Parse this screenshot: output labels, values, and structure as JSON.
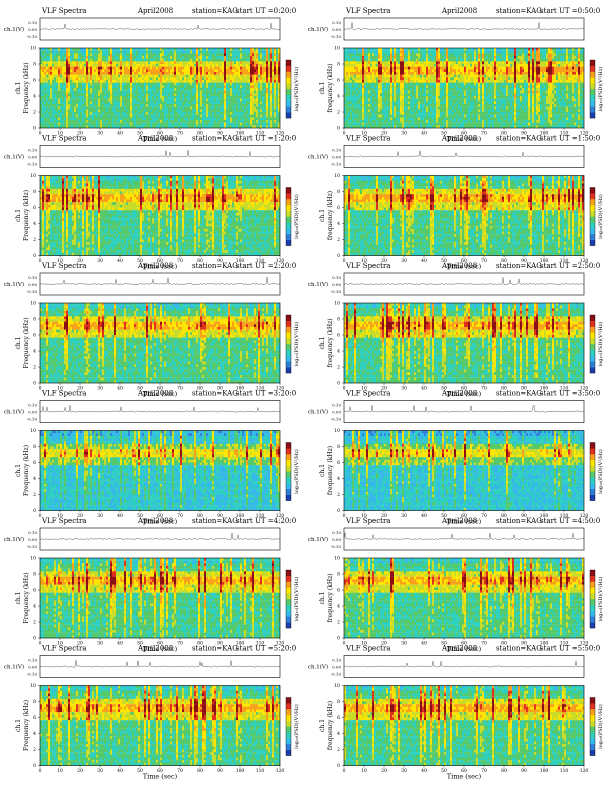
{
  "colors": {
    "palette": [
      "#1b3fb0",
      "#2f7fd8",
      "#35b9e8",
      "#2fd0c0",
      "#56c96a",
      "#c7dd2a",
      "#ffe500",
      "#f7a21a",
      "#e0301e",
      "#8b0f14"
    ],
    "trace": "#333333",
    "frame": "#000000"
  },
  "common": {
    "header_title": "VLF Spectra",
    "date": "April2008",
    "station": "station=KAG",
    "waveform_label": "ch.1(V)",
    "waveform_ticks": [
      "0.10",
      "0.00",
      "-0.10"
    ],
    "y_label_channel": "ch.1",
    "y_label_left": "Frequency (kHz)",
    "y_label_right": "frequency (kHz)",
    "x_label": "Time (sec)",
    "x_ticks": [
      "0",
      "10",
      "20",
      "30",
      "40",
      "50",
      "60",
      "70",
      "80",
      "90",
      "100",
      "110",
      "120"
    ],
    "y_ticks": [
      "0",
      "2",
      "4",
      "6",
      "8",
      "10"
    ],
    "colorbar_label": "log₁₀(PSD)(V²/Hz)",
    "colorbar_ticks": [
      "",
      ""
    ]
  },
  "chart_data": [
    {
      "type": "heatmap",
      "start": "start UT =0:20:0",
      "xlim": [
        0,
        120
      ],
      "ylim": [
        0,
        10
      ]
    },
    {
      "type": "heatmap",
      "start": "start UT =0:50:0",
      "xlim": [
        0,
        120
      ],
      "ylim": [
        0,
        10
      ]
    },
    {
      "type": "heatmap",
      "start": "start UT =1:20:0",
      "xlim": [
        0,
        120
      ],
      "ylim": [
        0,
        10
      ]
    },
    {
      "type": "heatmap",
      "start": "start UT =1:50:0",
      "xlim": [
        0,
        120
      ],
      "ylim": [
        0,
        10
      ]
    },
    {
      "type": "heatmap",
      "start": "start UT =2:20:0",
      "xlim": [
        0,
        120
      ],
      "ylim": [
        0,
        10
      ]
    },
    {
      "type": "heatmap",
      "start": "start UT =2:50:0",
      "xlim": [
        0,
        120
      ],
      "ylim": [
        0,
        10
      ]
    },
    {
      "type": "heatmap",
      "start": "start UT =3:20:0",
      "xlim": [
        0,
        120
      ],
      "ylim": [
        0,
        10
      ]
    },
    {
      "type": "heatmap",
      "start": "start UT =3:50:0",
      "xlim": [
        0,
        120
      ],
      "ylim": [
        0,
        10
      ]
    },
    {
      "type": "heatmap",
      "start": "start UT =4:20:0",
      "xlim": [
        0,
        120
      ],
      "ylim": [
        0,
        10
      ]
    },
    {
      "type": "heatmap",
      "start": "start UT =4:50:0",
      "xlim": [
        0,
        120
      ],
      "ylim": [
        0,
        10
      ]
    },
    {
      "type": "heatmap",
      "start": "start UT =5:20:0",
      "xlim": [
        0,
        120
      ],
      "ylim": [
        0,
        10
      ]
    },
    {
      "type": "heatmap",
      "start": "start UT =5:50:0",
      "xlim": [
        0,
        120
      ],
      "ylim": [
        0,
        10
      ]
    }
  ]
}
